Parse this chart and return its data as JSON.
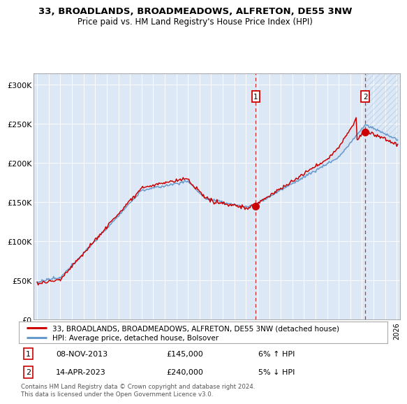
{
  "title1": "33, BROADLANDS, BROADMEADOWS, ALFRETON, DE55 3NW",
  "title2": "Price paid vs. HM Land Registry's House Price Index (HPI)",
  "legend_red": "33, BROADLANDS, BROADMEADOWS, ALFRETON, DE55 3NW (detached house)",
  "legend_blue": "HPI: Average price, detached house, Bolsover",
  "transaction1_date": "08-NOV-2013",
  "transaction1_price": "£145,000",
  "transaction1_hpi": "6% ↑ HPI",
  "transaction2_date": "14-APR-2023",
  "transaction2_price": "£240,000",
  "transaction2_hpi": "5% ↓ HPI",
  "footnote": "Contains HM Land Registry data © Crown copyright and database right 2024.\nThis data is licensed under the Open Government Licence v3.0.",
  "ylabel_ticks": [
    "£0",
    "£50K",
    "£100K",
    "£150K",
    "£200K",
    "£250K",
    "£300K"
  ],
  "ylabel_values": [
    0,
    50000,
    100000,
    150000,
    200000,
    250000,
    300000
  ],
  "ylim": [
    0,
    315000
  ],
  "xlim_left": 1994.7,
  "xlim_right": 2026.3,
  "background_color": "#dce8f5",
  "fill_color": "#c8d8ee",
  "red_color": "#cc0000",
  "blue_color": "#6699cc",
  "marker1_x": 2013.85,
  "marker1_y": 145000,
  "marker2_x": 2023.28,
  "marker2_y": 240000
}
